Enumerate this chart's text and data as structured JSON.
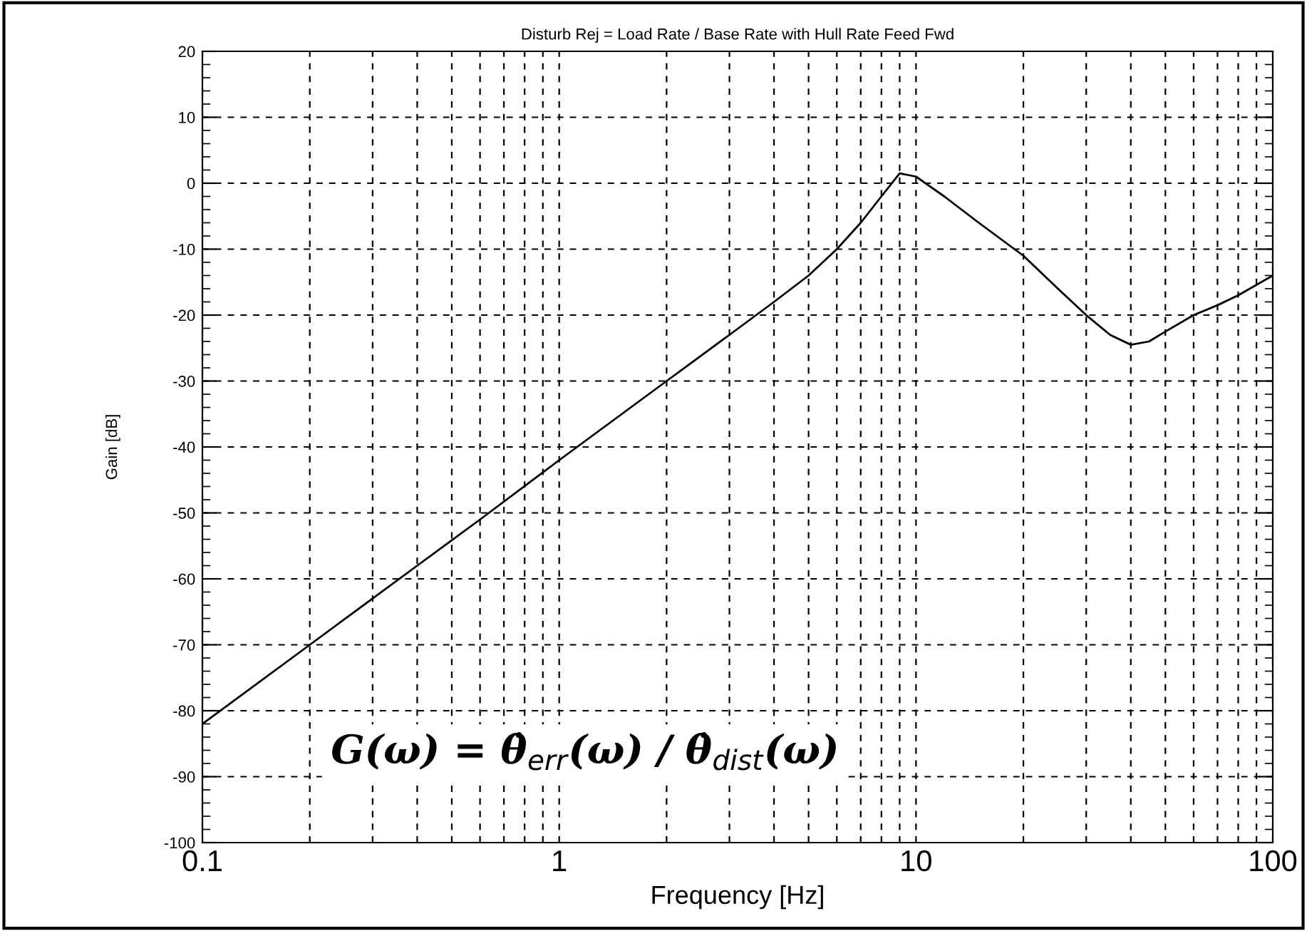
{
  "chart_data": {
    "type": "line",
    "title": "Disturb Rej = Load Rate / Base Rate with Hull Rate Feed Fwd",
    "xlabel": "Frequency [Hz]",
    "ylabel": "Gain [dB]",
    "log": "x",
    "xlim": [
      0.1,
      100
    ],
    "xticks": [
      0.1,
      1,
      10,
      100
    ],
    "ylim": [
      -100,
      20
    ],
    "yticks": [
      -100,
      -90,
      -80,
      -70,
      -60,
      -50,
      -40,
      -30,
      -20,
      -10,
      0,
      10,
      20
    ],
    "grid": true,
    "line_style": "solid",
    "marker": "none",
    "x": [
      0.1,
      0.2,
      0.4,
      0.6,
      1,
      2,
      3,
      4,
      5,
      6,
      7,
      8,
      9,
      10,
      12,
      15,
      20,
      25,
      30,
      35,
      40,
      45,
      50,
      60,
      70,
      80,
      100
    ],
    "series": [
      {
        "color": "#000000",
        "values": [
          -82,
          -70,
          -58,
          -51,
          -42,
          -30,
          -23,
          -18,
          -14,
          -10,
          -6,
          -2,
          1.5,
          1,
          -2,
          -6,
          -11,
          -16,
          -20,
          -23,
          -24.5,
          -24,
          -22.5,
          -20,
          -18.5,
          -17,
          -14
        ]
      }
    ],
    "annotations": [
      "G(ω) = θ̇$_{err}$(ω) / θ̇$_{dist}$(ω)"
    ]
  }
}
